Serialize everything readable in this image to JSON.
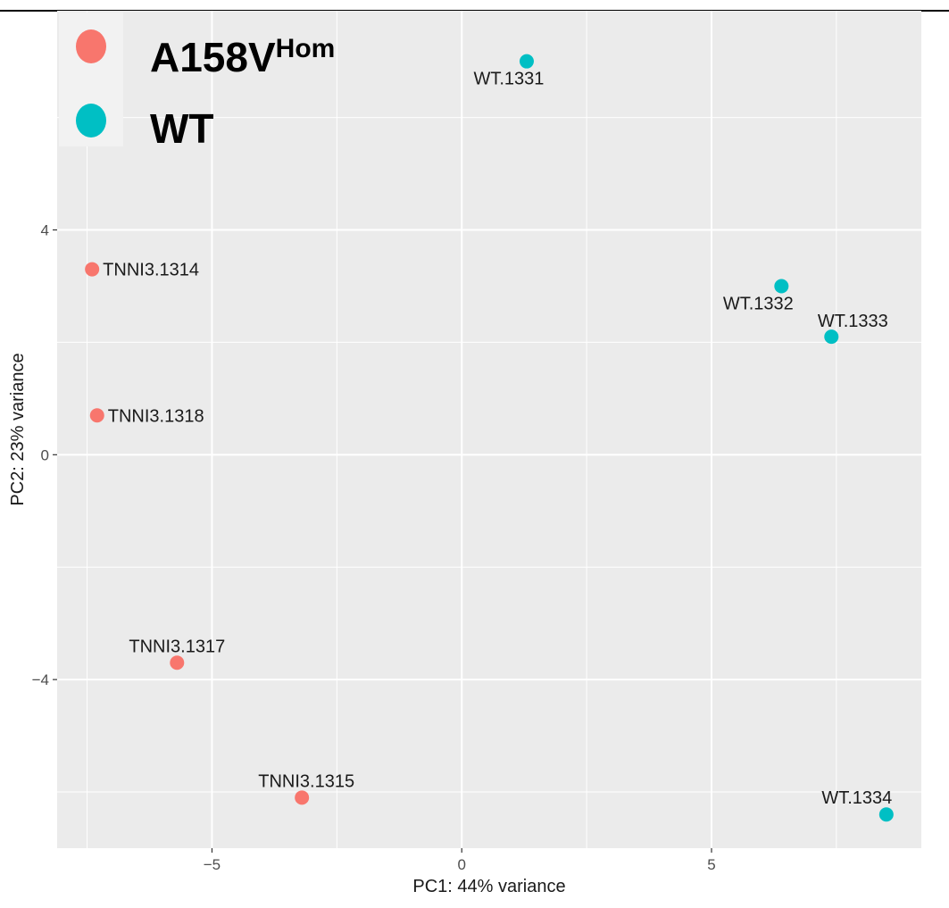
{
  "chart_data": {
    "type": "scatter",
    "xlabel": "PC1: 44% variance",
    "ylabel": "PC2: 23% variance",
    "xlim": [
      -8.1,
      9.2
    ],
    "ylim": [
      -7.0,
      7.9
    ],
    "xticks": [
      -5,
      0,
      5
    ],
    "xtick_labels": [
      "−5",
      "0",
      "5"
    ],
    "yticks": [
      -4,
      0,
      4
    ],
    "ytick_labels": [
      "−4",
      "0",
      "4"
    ],
    "grid": true,
    "legend_position": "top-left",
    "series": [
      {
        "name": "A158V",
        "name_superscript": "Hom",
        "color": "#F8766D",
        "points": [
          {
            "label": "TNNI3.1314",
            "x": -7.4,
            "y": 3.3
          },
          {
            "label": "TNNI3.1318",
            "x": -7.3,
            "y": 0.7
          },
          {
            "label": "TNNI3.1317",
            "x": -5.7,
            "y": -3.7
          },
          {
            "label": "TNNI3.1315",
            "x": -3.2,
            "y": -6.1
          }
        ]
      },
      {
        "name": "WT",
        "name_superscript": "",
        "color": "#00BFC4",
        "points": [
          {
            "label": "WT.1331",
            "x": 1.3,
            "y": 7.0
          },
          {
            "label": "WT.1332",
            "x": 6.4,
            "y": 3.0
          },
          {
            "label": "WT.1333",
            "x": 7.4,
            "y": 2.1
          },
          {
            "label": "WT.1334",
            "x": 8.5,
            "y": -6.4
          }
        ]
      }
    ]
  },
  "colors": {
    "panel": "#EBEBEB",
    "grid": "#FFFFFF",
    "legend_bg": "#F2F2F2"
  }
}
